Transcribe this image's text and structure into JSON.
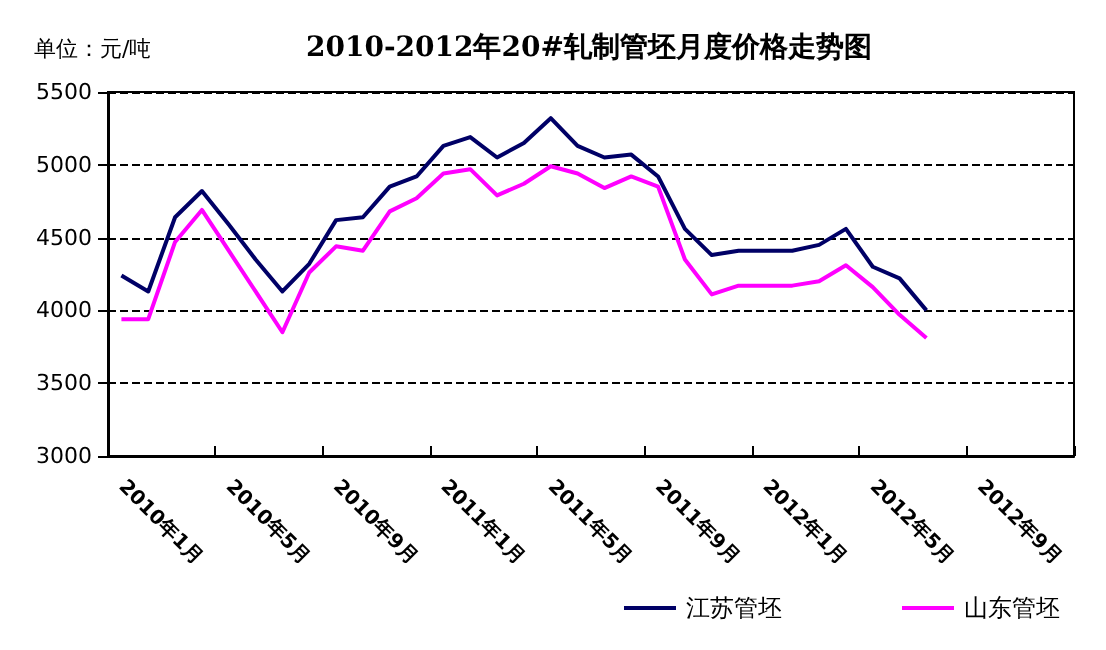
{
  "chart_data": {
    "type": "line",
    "title": "2010-2012年20#轧制管坯月度价格走势图",
    "ylabel": "单位：元/吨",
    "categories": [
      "2010年1月",
      null,
      null,
      null,
      "2010年5月",
      null,
      null,
      null,
      "2010年9月",
      null,
      null,
      null,
      "2011年1月",
      null,
      null,
      null,
      "2011年5月",
      null,
      null,
      null,
      "2011年9月",
      null,
      null,
      null,
      "2012年1月",
      null,
      null,
      null,
      "2012年5月",
      null,
      null,
      null,
      "2012年9月",
      null,
      null,
      null
    ],
    "series": [
      {
        "name": "江苏管坯",
        "color": "#000066",
        "values": [
          4240,
          4130,
          4640,
          4820,
          4590,
          4350,
          4130,
          4320,
          4620,
          4640,
          4850,
          4920,
          5130,
          5190,
          5050,
          5150,
          5320,
          5130,
          5050,
          5070,
          4920,
          4560,
          4380,
          4410,
          4410,
          4410,
          4450,
          4560,
          4300,
          4220,
          4000,
          null,
          null,
          null,
          null,
          null
        ]
      },
      {
        "name": "山东管坯",
        "color": "#ff00ff",
        "values": [
          3940,
          3940,
          4470,
          4690,
          4410,
          4130,
          3850,
          4260,
          4440,
          4410,
          4680,
          4770,
          4940,
          4970,
          4790,
          4870,
          4990,
          4940,
          4840,
          4920,
          4850,
          4350,
          4110,
          4170,
          4170,
          4170,
          4200,
          4310,
          4160,
          3970,
          3810,
          null,
          null,
          null,
          null,
          null
        ]
      }
    ],
    "ylim": [
      3000,
      5500
    ],
    "yticks": [
      3000,
      3500,
      4000,
      4500,
      5000,
      5500
    ],
    "grid": "y",
    "legend": "bottom right",
    "marker": "none",
    "line_style": "solid"
  }
}
